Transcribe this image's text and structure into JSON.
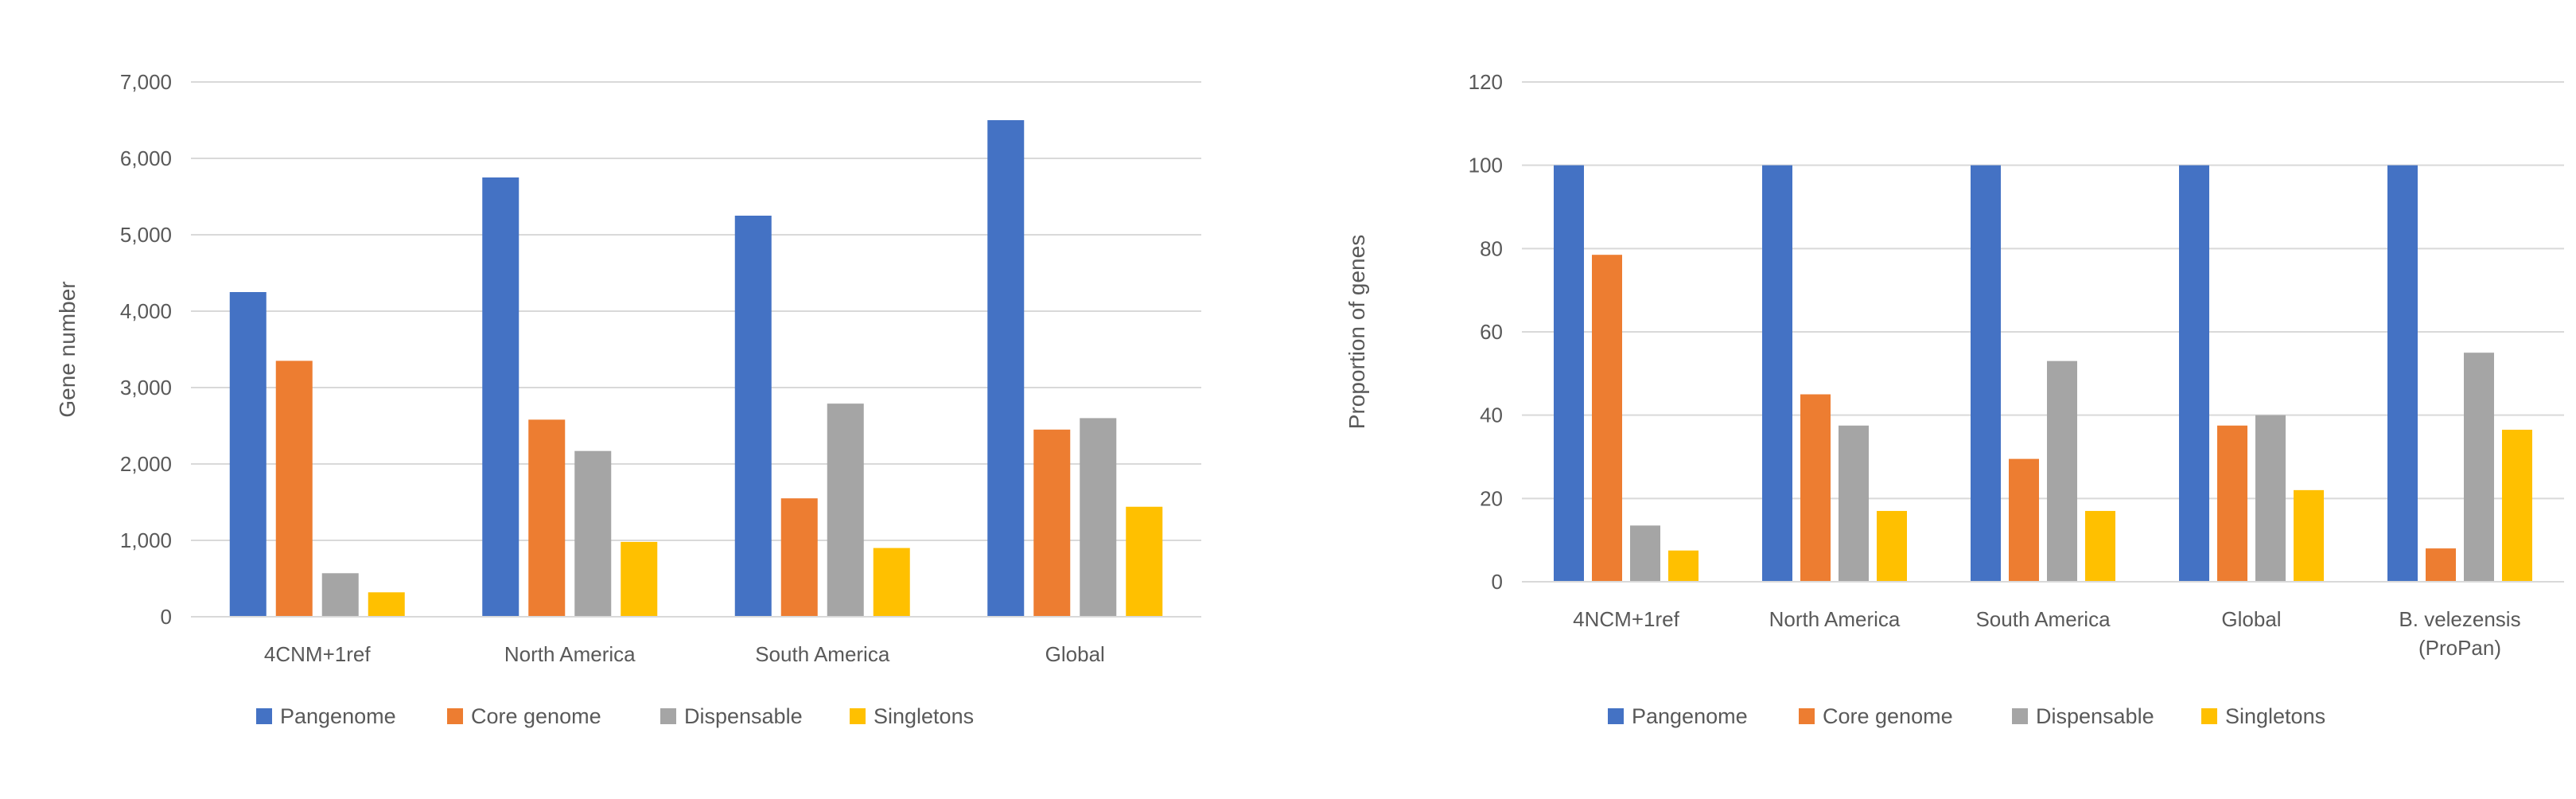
{
  "chart_data": [
    {
      "type": "bar",
      "title": "",
      "xlabel": "",
      "ylabel": "Gene number",
      "ylim": [
        0,
        7000
      ],
      "yticks": [
        "0",
        "1,000",
        "2,000",
        "3,000",
        "4,000",
        "5,000",
        "6,000",
        "7,000"
      ],
      "ytick_values": [
        0,
        1000,
        2000,
        3000,
        4000,
        5000,
        6000,
        7000
      ],
      "categories": [
        [
          "4CNM+1ref"
        ],
        [
          "North America"
        ],
        [
          "South America"
        ],
        [
          "Global"
        ]
      ],
      "grid": true,
      "legend": "bottom",
      "series": [
        {
          "name": "Pangenome",
          "color": "#4472c4",
          "values": [
            4250,
            5750,
            5250,
            6500
          ]
        },
        {
          "name": "Core genome",
          "color": "#ed7d31",
          "values": [
            3350,
            2580,
            1550,
            2450
          ]
        },
        {
          "name": "Dispensable",
          "color": "#a5a5a5",
          "values": [
            570,
            2170,
            2790,
            2600
          ]
        },
        {
          "name": "Singletons",
          "color": "#ffc000",
          "values": [
            320,
            980,
            900,
            1440
          ]
        }
      ]
    },
    {
      "type": "bar",
      "title": "",
      "xlabel": "",
      "ylabel": "Proportion of genes",
      "ylim": [
        0,
        120
      ],
      "yticks": [
        "0",
        "20",
        "40",
        "60",
        "80",
        "100",
        "120"
      ],
      "ytick_values": [
        0,
        20,
        40,
        60,
        80,
        100,
        120
      ],
      "categories": [
        [
          "4NCM+1ref"
        ],
        [
          "North America"
        ],
        [
          "South America"
        ],
        [
          "Global"
        ],
        [
          "B. velezensis",
          "(ProPan)"
        ]
      ],
      "grid": true,
      "legend": "bottom",
      "series": [
        {
          "name": "Pangenome",
          "color": "#4472c4",
          "values": [
            100,
            100,
            100,
            100,
            100
          ]
        },
        {
          "name": "Core genome",
          "color": "#ed7d31",
          "values": [
            78.5,
            45,
            29.5,
            37.5,
            8
          ]
        },
        {
          "name": "Dispensable",
          "color": "#a5a5a5",
          "values": [
            13.5,
            37.5,
            53,
            40,
            55
          ]
        },
        {
          "name": "Singletons",
          "color": "#ffc000",
          "values": [
            7.5,
            17,
            17,
            22,
            36.5
          ]
        }
      ]
    }
  ]
}
